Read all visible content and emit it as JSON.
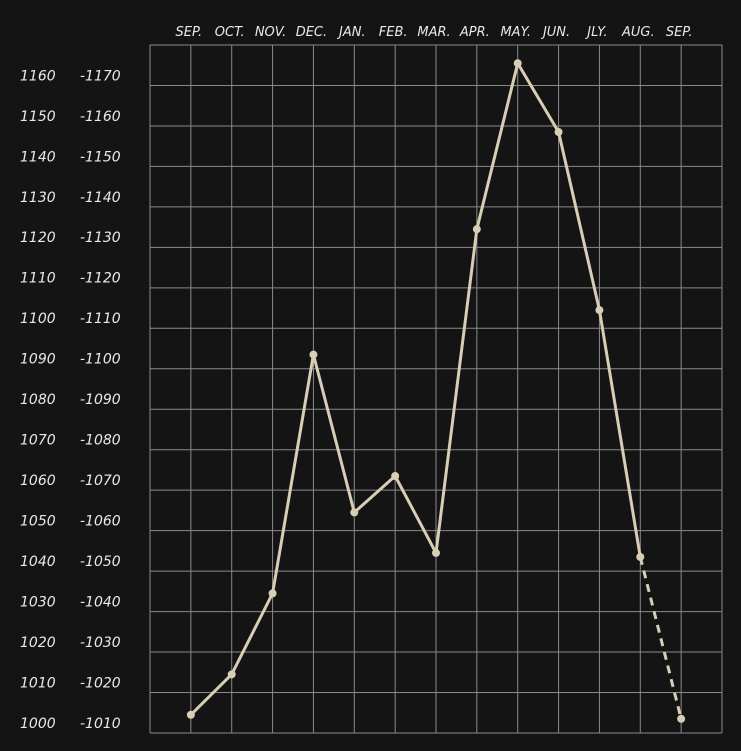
{
  "chart_data": {
    "type": "line",
    "x_categories_top": [
      "SEP.",
      "OCT.",
      "NOV.",
      "DEC.",
      "JAN.",
      "FEB.",
      "MAR.",
      "APR.",
      "MAY.",
      "JUN.",
      "JLY.",
      "AUG.",
      "SEP."
    ],
    "y_axis_left_ticks": [
      "1160",
      "1150",
      "1140",
      "1130",
      "1120",
      "1110",
      "1100",
      "1090",
      "1080",
      "1070",
      "1060",
      "1050",
      "1040",
      "1030",
      "1020",
      "1010",
      "1000"
    ],
    "y_axis_right_ticks": [
      "-1170",
      "-1160",
      "-1150",
      "-1140",
      "-1130",
      "-1120",
      "-1110",
      "-1100",
      "-1090",
      "-1080",
      "-1070",
      "-1060",
      "-1050",
      "-1040",
      "-1030",
      "-1020",
      "-1010"
    ],
    "ylim_left": [
      1000,
      1160
    ],
    "grid": true,
    "series": [
      {
        "x": [
          0,
          1,
          2,
          3,
          4,
          5,
          6,
          7,
          8,
          9,
          10,
          11,
          12
        ],
        "values": [
          1002,
          1012,
          1032,
          1091,
          1052,
          1061,
          1042,
          1122,
          1163,
          1146,
          1102,
          1041,
          1001
        ],
        "dashed_from_index": 11
      }
    ]
  },
  "colors": {
    "background": "#141414",
    "grid": "#8a8a8a",
    "line": "#d8cdb5",
    "text": "#e9e9e9"
  }
}
